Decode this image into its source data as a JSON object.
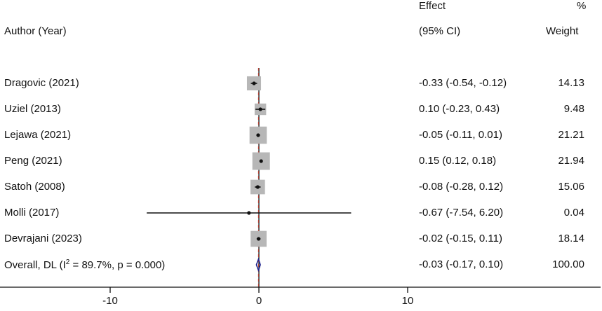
{
  "header": {
    "author_col": "Author (Year)",
    "effect_line1": "Effect",
    "effect_line2": "(95% CI)",
    "weight_line1": "%",
    "weight_line2": "Weight"
  },
  "colors": {
    "box": "#b7b7b7",
    "point": "#111111",
    "ci_line": "#111111",
    "null_line": "#111111",
    "overall_dashed": "#c0392b",
    "diamond": "#1a1f8c",
    "axis": "#111111"
  },
  "chart_data": {
    "type": "forest",
    "x_range": [
      -15,
      20
    ],
    "x_ticks": [
      -10,
      0,
      10
    ],
    "x_tick_labels": [
      "-10",
      "0",
      "10"
    ],
    "null_value": 0,
    "studies": [
      {
        "label": "Dragovic (2021)",
        "effect": -0.33,
        "lo": -0.54,
        "hi": -0.12,
        "effect_text": "-0.33 (-0.54, -0.12)",
        "weight": 14.13,
        "weight_text": "14.13"
      },
      {
        "label": "Uziel (2013)",
        "effect": 0.1,
        "lo": -0.23,
        "hi": 0.43,
        "effect_text": "0.10 (-0.23, 0.43)",
        "weight": 9.48,
        "weight_text": "9.48"
      },
      {
        "label": "Lejawa (2021)",
        "effect": -0.05,
        "lo": -0.11,
        "hi": 0.01,
        "effect_text": "-0.05 (-0.11, 0.01)",
        "weight": 21.21,
        "weight_text": "21.21"
      },
      {
        "label": "Peng (2021)",
        "effect": 0.15,
        "lo": 0.12,
        "hi": 0.18,
        "effect_text": "0.15 (0.12, 0.18)",
        "weight": 21.94,
        "weight_text": "21.94"
      },
      {
        "label": "Satoh (2008)",
        "effect": -0.08,
        "lo": -0.28,
        "hi": 0.12,
        "effect_text": "-0.08 (-0.28, 0.12)",
        "weight": 15.06,
        "weight_text": "15.06"
      },
      {
        "label": "Molli (2017)",
        "effect": -0.67,
        "lo": -7.54,
        "hi": 6.2,
        "effect_text": "-0.67 (-7.54, 6.20)",
        "weight": 0.04,
        "weight_text": "0.04"
      },
      {
        "label": "Devrajani (2023)",
        "effect": -0.02,
        "lo": -0.15,
        "hi": 0.11,
        "effect_text": "-0.02 (-0.15, 0.11)",
        "weight": 18.14,
        "weight_text": "18.14"
      }
    ],
    "overall": {
      "label_prefix": "Overall, DL (I",
      "label_sup": "2",
      "label_suffix": " = 89.7%, p = 0.000)",
      "effect": -0.03,
      "lo": -0.17,
      "hi": 0.1,
      "effect_text": "-0.03 (-0.17, 0.10)",
      "weight_text": "100.00"
    }
  }
}
